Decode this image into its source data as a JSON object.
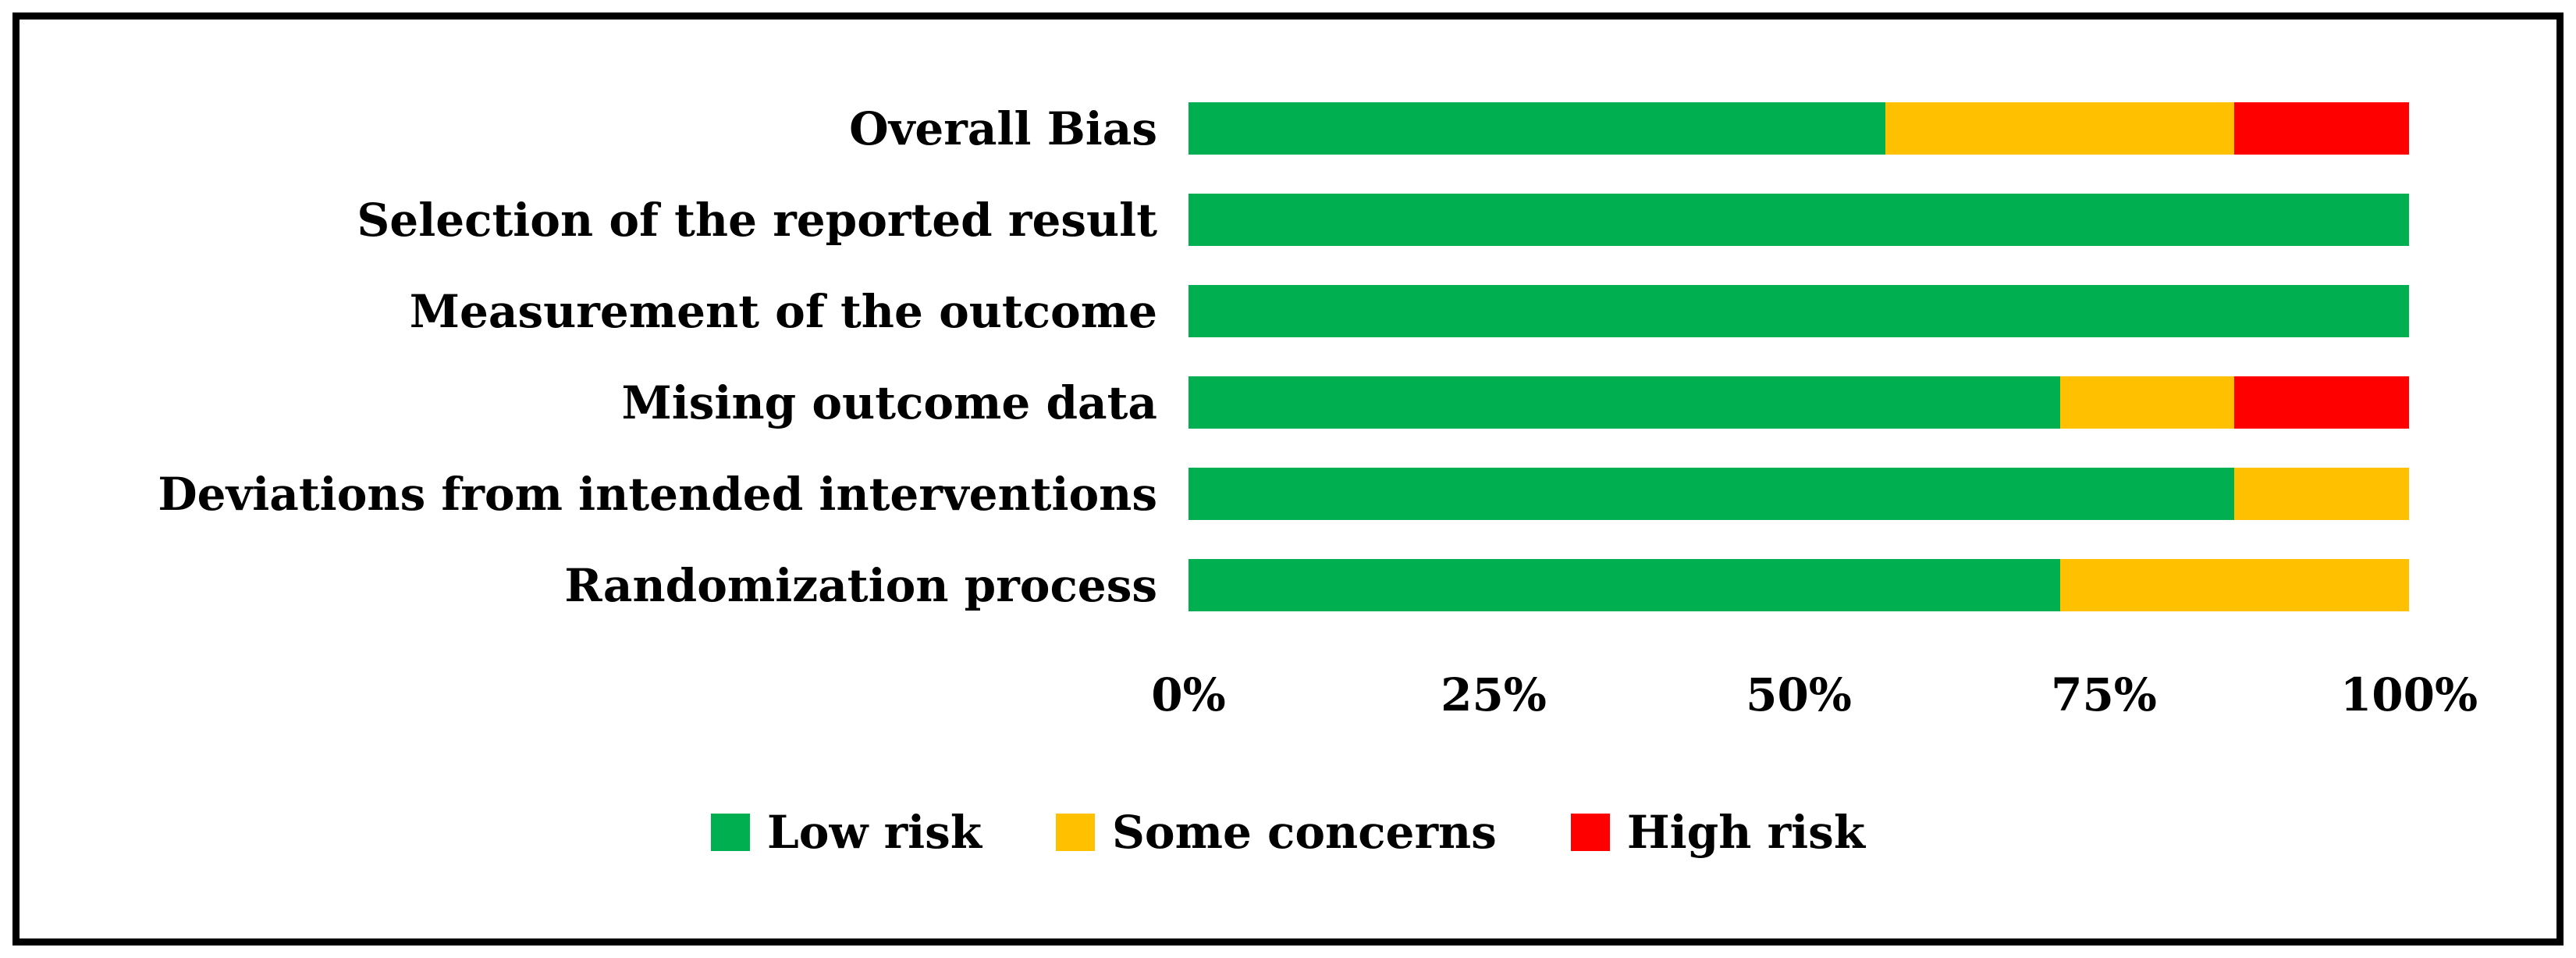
{
  "figure": {
    "background_color": "#ffffff",
    "frame_border_color": "#000000",
    "text_color": "#000000"
  },
  "chart_data": {
    "type": "bar",
    "orientation": "horizontal",
    "stacked": true,
    "units": "percent",
    "title": "",
    "xlabel": "",
    "ylabel": "",
    "categories": [
      "Overall Bias",
      "Selection of the reported result",
      "Measurement of the outcome",
      "Mising outcome data",
      "Deviations from intended interventions",
      "Randomization process"
    ],
    "series": [
      {
        "name": "Low risk",
        "color": "#00B050",
        "values": [
          57.1,
          100,
          100,
          71.4,
          85.7,
          71.4
        ]
      },
      {
        "name": "Some concerns",
        "color": "#FFC000",
        "values": [
          28.6,
          0,
          0,
          14.3,
          14.3,
          28.6
        ]
      },
      {
        "name": "High risk",
        "color": "#FF0000",
        "values": [
          14.3,
          0,
          0,
          14.3,
          0,
          0
        ]
      }
    ],
    "x_ticks": [
      "0%",
      "25%",
      "50%",
      "75%",
      "100%"
    ],
    "xlim": [
      0,
      100
    ],
    "grid": false,
    "legend_position": "bottom"
  }
}
